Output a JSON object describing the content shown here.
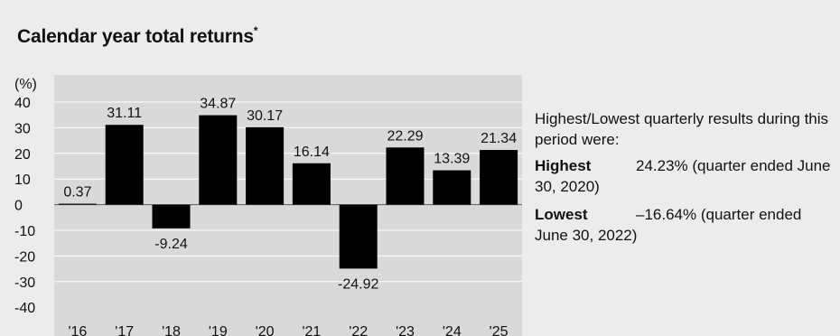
{
  "title": "Calendar year total returns",
  "title_marker": "*",
  "chart_data": {
    "type": "bar",
    "title": "Calendar year total returns*",
    "ylabel": "(%)",
    "categories": [
      "'16",
      "'17",
      "'18",
      "'19",
      "'20",
      "'21",
      "'22",
      "'23",
      "'24",
      "'25"
    ],
    "values": [
      0.37,
      31.11,
      -9.24,
      34.87,
      30.17,
      16.14,
      -24.92,
      22.29,
      13.39,
      21.34
    ],
    "value_labels": [
      "0.37",
      "31.11",
      "-9.24",
      "34.87",
      "30.17",
      "16.14",
      "-24.92",
      "22.29",
      "13.39",
      "21.34"
    ],
    "ylim": [
      -40,
      40
    ],
    "yticks": [
      "40",
      "30",
      "20",
      "10",
      "0",
      "-10",
      "-20",
      "-30",
      "-40"
    ],
    "ytick_values": [
      40,
      30,
      20,
      10,
      0,
      -10,
      -20,
      -30,
      -40
    ],
    "grid": true,
    "colors": {
      "bar": "#000000",
      "plot_bg": "#d9d9d9",
      "grid": "#ffffff"
    }
  },
  "sidebar": {
    "intro": "Highest/Lowest quarterly results during this period were:",
    "highest_label": "Highest",
    "highest_value": "24.23% (quarter ended June 30, 2020)",
    "lowest_label": "Lowest",
    "lowest_value": "–16.64% (quarter ended June 30, 2022)"
  }
}
